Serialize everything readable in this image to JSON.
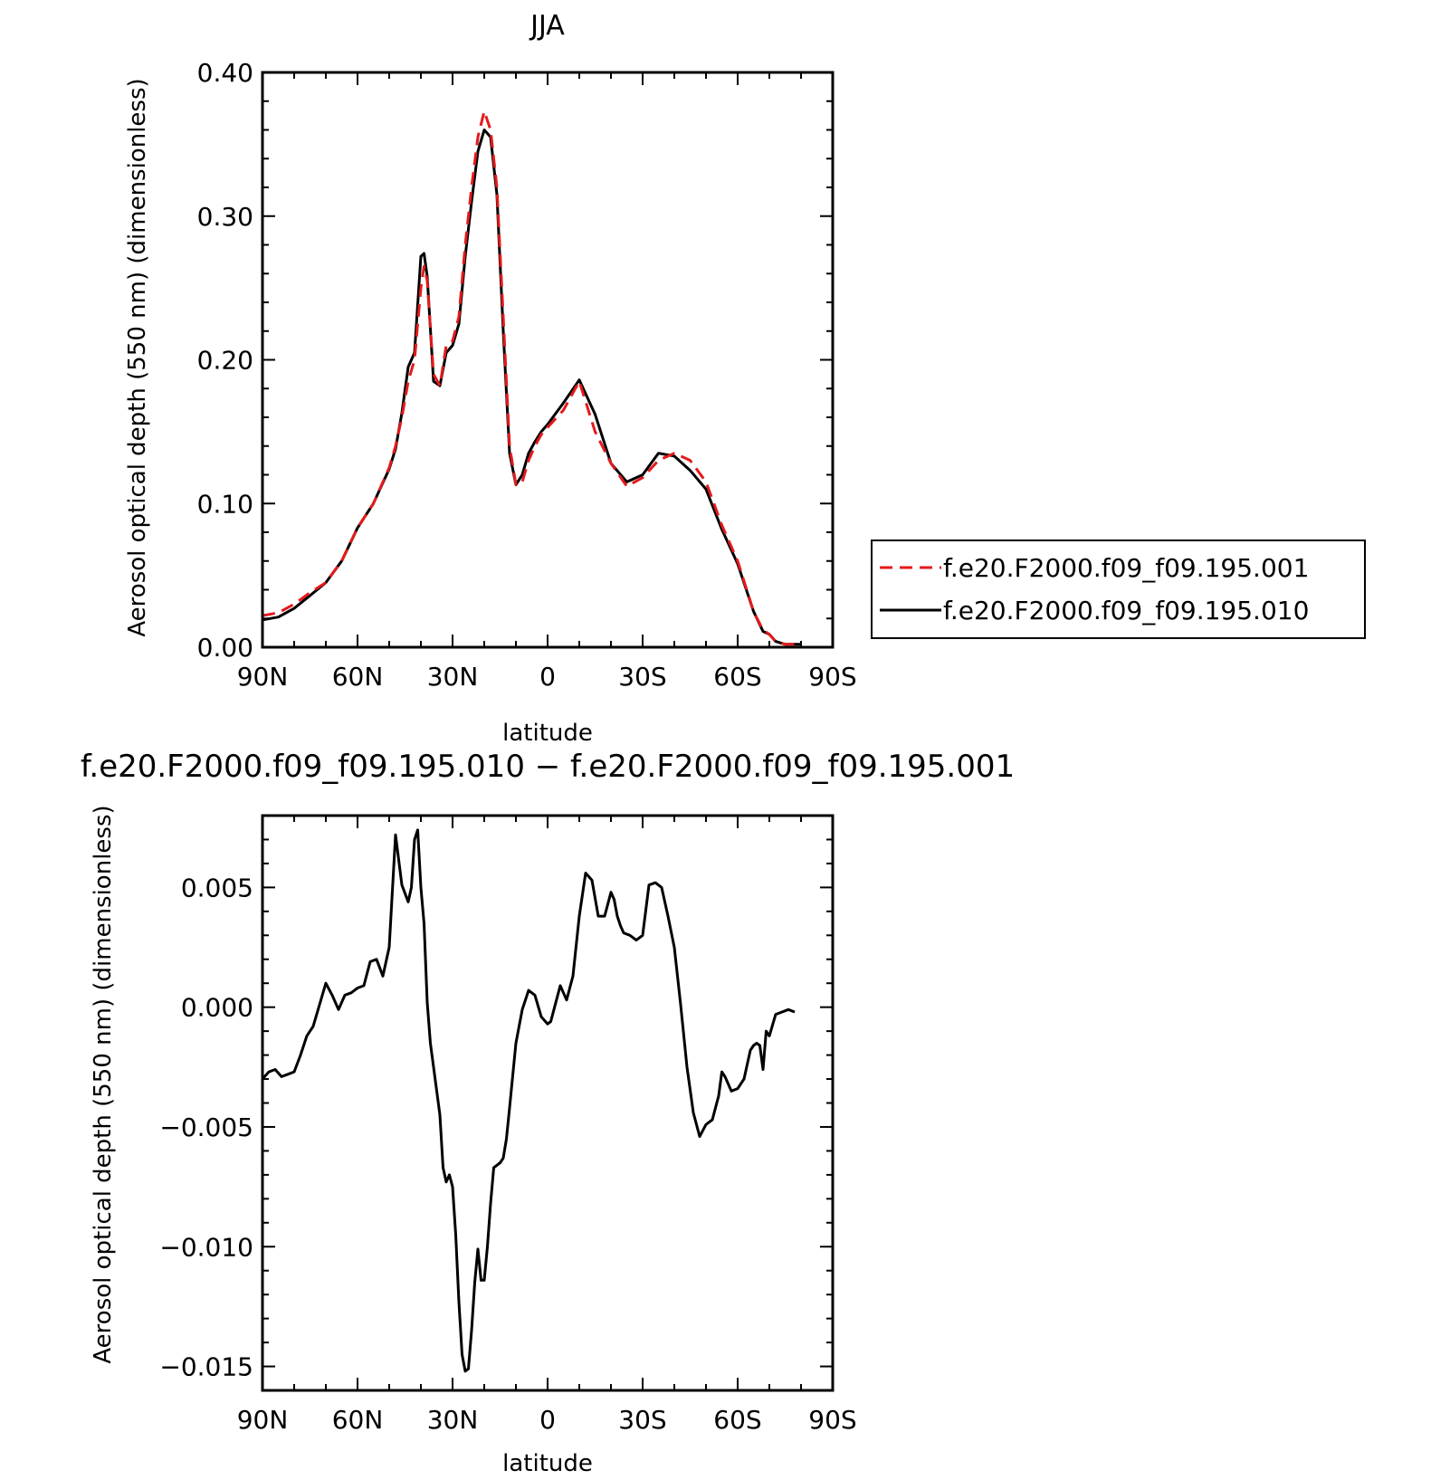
{
  "chart_data": [
    {
      "type": "line",
      "title": "JJA",
      "xlabel": "latitude",
      "ylabel": "Aerosol optical depth (550 nm) (dimensionless)",
      "xlim": [
        -90,
        90
      ],
      "ylim": [
        0.0,
        0.4
      ],
      "x_ticks": [
        "90N",
        "60N",
        "30N",
        "0",
        "30S",
        "60S",
        "90S"
      ],
      "y_ticks": [
        "0.00",
        "0.10",
        "0.20",
        "0.30",
        "0.40"
      ],
      "grid": false,
      "legend_position": "right",
      "series": [
        {
          "name": "f.e20.F2000.f09_f09.195.001",
          "color": "#e41a1c",
          "style": "dashed",
          "x": [
            -90,
            -85,
            -80,
            -75,
            -70,
            -65,
            -60,
            -55,
            -50,
            -48,
            -46,
            -44,
            -42,
            -40,
            -39,
            -38,
            -36,
            -34,
            -32,
            -30,
            -28,
            -26,
            -24,
            -22,
            -20,
            -18,
            -16,
            -14,
            -12,
            -10,
            -8,
            -6,
            -4,
            -2,
            0,
            5,
            10,
            15,
            20,
            25,
            30,
            35,
            40,
            45,
            50,
            55,
            60,
            65,
            68,
            70,
            72,
            75,
            80
          ],
          "y": [
            0.022,
            0.024,
            0.03,
            0.038,
            0.045,
            0.06,
            0.083,
            0.1,
            0.125,
            0.14,
            0.16,
            0.185,
            0.2,
            0.25,
            0.265,
            0.255,
            0.19,
            0.182,
            0.21,
            0.213,
            0.23,
            0.28,
            0.32,
            0.355,
            0.373,
            0.36,
            0.32,
            0.23,
            0.14,
            0.113,
            0.115,
            0.13,
            0.14,
            0.148,
            0.153,
            0.165,
            0.185,
            0.15,
            0.128,
            0.112,
            0.118,
            0.13,
            0.135,
            0.13,
            0.115,
            0.085,
            0.06,
            0.025,
            0.012,
            0.009,
            0.004,
            0.002,
            0.002
          ]
        },
        {
          "name": "f.e20.F2000.f09_f09.195.010",
          "color": "#000000",
          "style": "solid",
          "x": [
            -90,
            -85,
            -80,
            -75,
            -70,
            -65,
            -60,
            -55,
            -50,
            -48,
            -46,
            -44,
            -42,
            -40,
            -39,
            -38,
            -36,
            -34,
            -32,
            -30,
            -28,
            -26,
            -24,
            -22,
            -20,
            -18,
            -16,
            -14,
            -12,
            -10,
            -8,
            -6,
            -4,
            -2,
            0,
            5,
            10,
            15,
            20,
            25,
            30,
            35,
            40,
            45,
            50,
            55,
            60,
            65,
            68,
            70,
            72,
            75,
            80
          ],
          "y": [
            0.019,
            0.021,
            0.027,
            0.036,
            0.045,
            0.06,
            0.083,
            0.1,
            0.124,
            0.138,
            0.163,
            0.195,
            0.205,
            0.272,
            0.274,
            0.258,
            0.185,
            0.182,
            0.205,
            0.21,
            0.225,
            0.272,
            0.31,
            0.345,
            0.36,
            0.355,
            0.315,
            0.22,
            0.135,
            0.113,
            0.12,
            0.135,
            0.143,
            0.15,
            0.155,
            0.17,
            0.186,
            0.162,
            0.128,
            0.115,
            0.12,
            0.135,
            0.133,
            0.123,
            0.11,
            0.082,
            0.058,
            0.025,
            0.011,
            0.009,
            0.004,
            0.002,
            0.002
          ]
        }
      ]
    },
    {
      "type": "line",
      "title": "f.e20.F2000.f09_f09.195.010 − f.e20.F2000.f09_f09.195.001",
      "xlabel": "latitude",
      "ylabel": "Aerosol optical depth (550 nm) (dimensionless)",
      "xlim": [
        -90,
        90
      ],
      "ylim": [
        -0.016,
        0.008
      ],
      "x_ticks": [
        "90N",
        "60N",
        "30N",
        "0",
        "30S",
        "60S",
        "90S"
      ],
      "y_ticks": [
        "0.005",
        "0.000",
        "−0.005",
        "−0.010",
        "−0.015"
      ],
      "y_tick_values": [
        0.005,
        0.0,
        -0.005,
        -0.01,
        -0.015
      ],
      "grid": false,
      "series": [
        {
          "color": "#000000",
          "style": "solid",
          "x": [
            -90,
            -88,
            -86,
            -84,
            -82,
            -80,
            -78,
            -76,
            -74,
            -72,
            -70,
            -68,
            -66,
            -64,
            -62,
            -60,
            -58,
            -56,
            -54,
            -52,
            -50,
            -48,
            -46,
            -44,
            -43,
            -42,
            -41,
            -40,
            -39,
            -38,
            -37,
            -36,
            -34,
            -33,
            -32,
            -31,
            -30,
            -29,
            -28,
            -27,
            -26,
            -25,
            -24,
            -23,
            -22,
            -21,
            -20,
            -19,
            -18,
            -17,
            -16,
            -15,
            -14,
            -13,
            -12,
            -10,
            -8,
            -6,
            -4,
            -2,
            0,
            1,
            2,
            4,
            6,
            8,
            10,
            12,
            14,
            16,
            18,
            20,
            21,
            22,
            23,
            24,
            26,
            28,
            30,
            32,
            34,
            36,
            38,
            40,
            42,
            44,
            46,
            48,
            50,
            52,
            54,
            55,
            56,
            58,
            60,
            62,
            64,
            65,
            66,
            67,
            68,
            69,
            70,
            72,
            74,
            76,
            78
          ],
          "y": [
            -0.003,
            -0.0027,
            -0.0026,
            -0.0029,
            -0.0028,
            -0.0027,
            -0.002,
            -0.0012,
            -0.0008,
            0.0001,
            0.001,
            0.0005,
            -0.0001,
            0.0005,
            0.0006,
            0.0008,
            0.0009,
            0.0019,
            0.002,
            0.0013,
            0.0025,
            0.0072,
            0.0051,
            0.0044,
            0.005,
            0.007,
            0.0074,
            0.005,
            0.0035,
            0.0002,
            -0.0015,
            -0.0025,
            -0.0045,
            -0.0067,
            -0.0073,
            -0.007,
            -0.0075,
            -0.0095,
            -0.0123,
            -0.0145,
            -0.0152,
            -0.0151,
            -0.0135,
            -0.0115,
            -0.0101,
            -0.0114,
            -0.0114,
            -0.01,
            -0.0082,
            -0.0067,
            -0.0066,
            -0.0065,
            -0.0063,
            -0.0055,
            -0.0042,
            -0.0015,
            -0.0001,
            0.0007,
            0.0005,
            -0.0004,
            -0.0007,
            -0.0006,
            -0.0001,
            0.0009,
            0.0003,
            0.0013,
            0.0038,
            0.0056,
            0.0053,
            0.0038,
            0.0038,
            0.0048,
            0.0045,
            0.0038,
            0.0034,
            0.0031,
            0.003,
            0.0028,
            0.003,
            0.0051,
            0.0052,
            0.005,
            0.0038,
            0.0025,
            0.0001,
            -0.0025,
            -0.0044,
            -0.0054,
            -0.0049,
            -0.0047,
            -0.0037,
            -0.0027,
            -0.0029,
            -0.0035,
            -0.0034,
            -0.003,
            -0.0018,
            -0.0016,
            -0.0015,
            -0.0016,
            -0.0026,
            -0.001,
            -0.0012,
            -0.0003,
            -0.0002,
            -0.0001,
            -0.0002
          ]
        }
      ]
    }
  ]
}
